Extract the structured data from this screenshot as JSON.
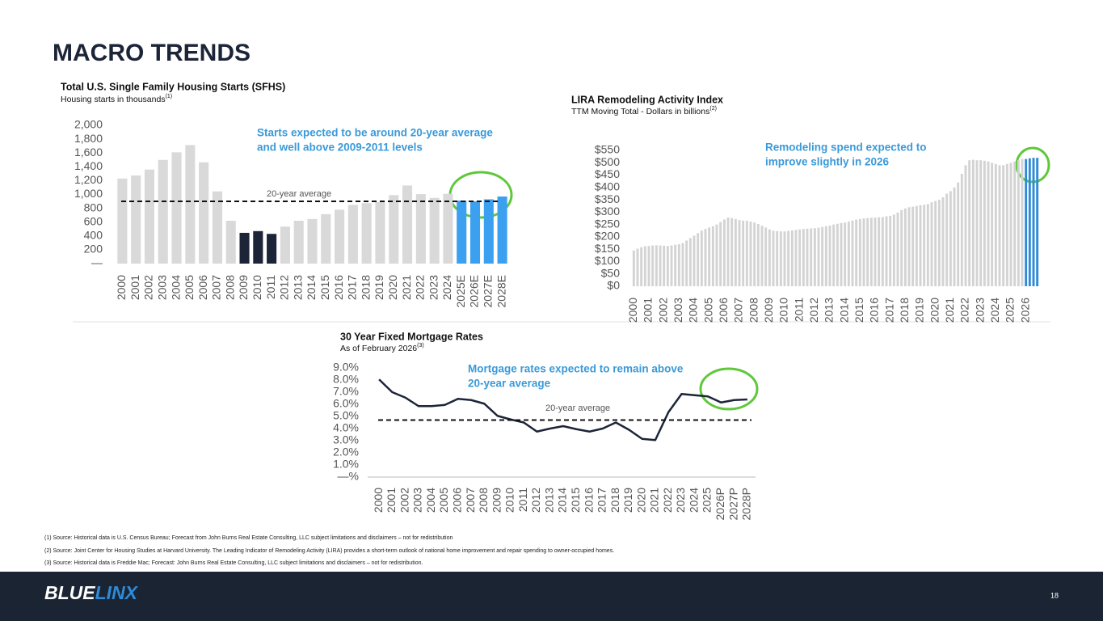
{
  "title": "MACRO TRENDS",
  "chart_data": [
    {
      "type": "bar",
      "title": "Total U.S. Single Family Housing Starts (SFHS)",
      "subtitle": "Housing starts in thousands",
      "subtitle_note": "(1)",
      "annotation": [
        "Starts expected to be around 20-year average",
        "and well above 2009-2011 levels"
      ],
      "categories": [
        "2000",
        "2001",
        "2002",
        "2003",
        "2004",
        "2005",
        "2006",
        "2007",
        "2008",
        "2009",
        "2010",
        "2011",
        "2012",
        "2013",
        "2014",
        "2015",
        "2016",
        "2017",
        "2018",
        "2019",
        "2020",
        "2021",
        "2022",
        "2023",
        "2024",
        "2025E",
        "2026E",
        "2027E",
        "2028E"
      ],
      "values": [
        1230,
        1275,
        1360,
        1500,
        1610,
        1715,
        1465,
        1045,
        620,
        445,
        470,
        430,
        535,
        620,
        645,
        715,
        780,
        850,
        875,
        890,
        990,
        1130,
        1005,
        950,
        1010,
        910,
        900,
        930,
        970
      ],
      "colors": [
        "#d9d9d9",
        "#d9d9d9",
        "#d9d9d9",
        "#d9d9d9",
        "#d9d9d9",
        "#d9d9d9",
        "#d9d9d9",
        "#d9d9d9",
        "#d9d9d9",
        "#1c2438",
        "#1c2438",
        "#1c2438",
        "#d9d9d9",
        "#d9d9d9",
        "#d9d9d9",
        "#d9d9d9",
        "#d9d9d9",
        "#d9d9d9",
        "#d9d9d9",
        "#d9d9d9",
        "#d9d9d9",
        "#d9d9d9",
        "#d9d9d9",
        "#d9d9d9",
        "#d9d9d9",
        "#3ba0f0",
        "#3ba0f0",
        "#3ba0f0",
        "#3ba0f0"
      ],
      "average": {
        "value": 900,
        "label": "20-year average"
      },
      "ylim": [
        0,
        2000
      ],
      "yticks": [
        {
          "value": 0,
          "label": "—"
        },
        200,
        400,
        600,
        800,
        {
          "value": 1000,
          "label": "1,000"
        },
        {
          "value": 1200,
          "label": "1,200"
        },
        {
          "value": 1400,
          "label": "1,400"
        },
        {
          "value": 1600,
          "label": "1,600"
        },
        {
          "value": 1800,
          "label": "1,800"
        },
        {
          "value": 2000,
          "label": "2,000"
        }
      ]
    },
    {
      "type": "bar",
      "title": "LIRA Remodeling Activity Index",
      "subtitle": "TTM Moving Total - Dollars in billions",
      "subtitle_note": "(2)",
      "annotation": [
        "Remodeling spend expected to",
        "improve slightly in 2026"
      ],
      "categories": [
        "2000",
        null,
        null,
        null,
        "2001",
        null,
        null,
        null,
        "2002",
        null,
        null,
        null,
        "2003",
        null,
        null,
        null,
        "2004",
        null,
        null,
        null,
        "2005",
        null,
        null,
        null,
        "2006",
        null,
        null,
        null,
        "2007",
        null,
        null,
        null,
        "2008",
        null,
        null,
        null,
        "2009",
        null,
        null,
        null,
        "2010",
        null,
        null,
        null,
        "2011",
        null,
        null,
        null,
        "2012",
        null,
        null,
        null,
        "2013",
        null,
        null,
        null,
        "2014",
        null,
        null,
        null,
        "2015",
        null,
        null,
        null,
        "2016",
        null,
        null,
        null,
        "2017",
        null,
        null,
        null,
        "2018",
        null,
        null,
        null,
        "2019",
        null,
        null,
        null,
        "2020",
        null,
        null,
        null,
        "2021",
        null,
        null,
        null,
        "2022",
        null,
        null,
        null,
        "2023",
        null,
        null,
        null,
        "2024",
        null,
        null,
        null,
        "2025",
        null,
        null,
        null,
        "2026",
        null,
        null,
        null
      ],
      "values": [
        145,
        152,
        158,
        162,
        163,
        165,
        166,
        165,
        164,
        163,
        165,
        168,
        170,
        175,
        185,
        195,
        205,
        215,
        225,
        232,
        238,
        243,
        250,
        260,
        270,
        278,
        276,
        272,
        268,
        266,
        265,
        262,
        258,
        252,
        245,
        238,
        230,
        225,
        223,
        222,
        222,
        224,
        226,
        228,
        230,
        232,
        233,
        234,
        235,
        237,
        240,
        243,
        246,
        250,
        253,
        256,
        258,
        262,
        266,
        270,
        272,
        275,
        276,
        277,
        278,
        279,
        280,
        283,
        285,
        290,
        298,
        308,
        315,
        320,
        322,
        325,
        328,
        330,
        333,
        340,
        345,
        350,
        360,
        375,
        385,
        400,
        420,
        455,
        490,
        510,
        512,
        510,
        510,
        508,
        505,
        500,
        495,
        490,
        490,
        495,
        500,
        505,
        510,
        515,
        515,
        518,
        520,
        520
      ],
      "colors": [
        "#d3d3d3",
        "#d3d3d3",
        "#d3d3d3",
        "#d3d3d3",
        "#d3d3d3",
        "#d3d3d3",
        "#d3d3d3",
        "#d3d3d3",
        "#d3d3d3",
        "#d3d3d3",
        "#d3d3d3",
        "#d3d3d3",
        "#d3d3d3",
        "#d3d3d3",
        "#d3d3d3",
        "#d3d3d3",
        "#d3d3d3",
        "#d3d3d3",
        "#d3d3d3",
        "#d3d3d3",
        "#d3d3d3",
        "#d3d3d3",
        "#d3d3d3",
        "#d3d3d3",
        "#d3d3d3",
        "#d3d3d3",
        "#d3d3d3",
        "#d3d3d3",
        "#d3d3d3",
        "#d3d3d3",
        "#d3d3d3",
        "#d3d3d3",
        "#d3d3d3",
        "#d3d3d3",
        "#d3d3d3",
        "#d3d3d3",
        "#d3d3d3",
        "#d3d3d3",
        "#d3d3d3",
        "#d3d3d3",
        "#d3d3d3",
        "#d3d3d3",
        "#d3d3d3",
        "#d3d3d3",
        "#d3d3d3",
        "#d3d3d3",
        "#d3d3d3",
        "#d3d3d3",
        "#d3d3d3",
        "#d3d3d3",
        "#d3d3d3",
        "#d3d3d3",
        "#d3d3d3",
        "#d3d3d3",
        "#d3d3d3",
        "#d3d3d3",
        "#d3d3d3",
        "#d3d3d3",
        "#d3d3d3",
        "#d3d3d3",
        "#d3d3d3",
        "#d3d3d3",
        "#d3d3d3",
        "#d3d3d3",
        "#d3d3d3",
        "#d3d3d3",
        "#d3d3d3",
        "#d3d3d3",
        "#d3d3d3",
        "#d3d3d3",
        "#d3d3d3",
        "#d3d3d3",
        "#d3d3d3",
        "#d3d3d3",
        "#d3d3d3",
        "#d3d3d3",
        "#d3d3d3",
        "#d3d3d3",
        "#d3d3d3",
        "#d3d3d3",
        "#d3d3d3",
        "#d3d3d3",
        "#d3d3d3",
        "#d3d3d3",
        "#d3d3d3",
        "#d3d3d3",
        "#d3d3d3",
        "#d3d3d3",
        "#d3d3d3",
        "#d3d3d3",
        "#d3d3d3",
        "#d3d3d3",
        "#d3d3d3",
        "#d3d3d3",
        "#d3d3d3",
        "#d3d3d3",
        "#d3d3d3",
        "#d3d3d3",
        "#d3d3d3",
        "#d3d3d3",
        "#d3d3d3",
        "#d3d3d3",
        "#d3d3d3",
        "#d3d3d3",
        "#2e8ad8",
        "#2e8ad8",
        "#2e8ad8",
        "#2e8ad8"
      ],
      "ylim": [
        0,
        550
      ],
      "yticks": [
        {
          "value": 0,
          "label": "$0"
        },
        {
          "value": 50,
          "label": "$50"
        },
        {
          "value": 100,
          "label": "$100"
        },
        {
          "value": 150,
          "label": "$150"
        },
        {
          "value": 200,
          "label": "$200"
        },
        {
          "value": 250,
          "label": "$250"
        },
        {
          "value": 300,
          "label": "$300"
        },
        {
          "value": 350,
          "label": "$350"
        },
        {
          "value": 400,
          "label": "$400"
        },
        {
          "value": 450,
          "label": "$450"
        },
        {
          "value": 500,
          "label": "$500"
        },
        {
          "value": 550,
          "label": "$550"
        }
      ]
    },
    {
      "type": "line",
      "title": "30 Year Fixed Mortgage Rates",
      "subtitle": "As of February 2026",
      "subtitle_note": "(3)",
      "annotation": [
        "Mortgage rates expected to remain above",
        "20-year average"
      ],
      "categories": [
        "2000",
        "2001",
        "2002",
        "2003",
        "2004",
        "2005",
        "2006",
        "2007",
        "2008",
        "2009",
        "2010",
        "2011",
        "2012",
        "2013",
        "2014",
        "2015",
        "2016",
        "2017",
        "2018",
        "2019",
        "2020",
        "2021",
        "2022",
        "2023",
        "2024",
        "2025",
        "2026P",
        "2027P",
        "2028P"
      ],
      "values": [
        8.05,
        7.0,
        6.55,
        5.85,
        5.85,
        5.95,
        6.45,
        6.35,
        6.05,
        5.05,
        4.75,
        4.5,
        3.75,
        4.0,
        4.2,
        3.95,
        3.75,
        4.0,
        4.5,
        3.9,
        3.15,
        3.05,
        5.35,
        6.85,
        6.75,
        6.65,
        6.15,
        6.35,
        6.4
      ],
      "color": "#1c2438",
      "average": {
        "value": 4.7,
        "label": "20-year average"
      },
      "ylim": [
        0,
        9
      ],
      "yticks": [
        {
          "value": 0,
          "label": "—%"
        },
        {
          "value": 1,
          "label": "1.0%"
        },
        {
          "value": 2,
          "label": "2.0%"
        },
        {
          "value": 3,
          "label": "3.0%"
        },
        {
          "value": 4,
          "label": "4.0%"
        },
        {
          "value": 5,
          "label": "5.0%"
        },
        {
          "value": 6,
          "label": "6.0%"
        },
        {
          "value": 7,
          "label": "7.0%"
        },
        {
          "value": 8,
          "label": "8.0%"
        },
        {
          "value": 9,
          "label": "9.0%"
        }
      ]
    }
  ],
  "footnotes": [
    "(1) Source: Historical data is U.S. Census Bureau; Forecast from John Burns Real Estate Consulting, LLC subject limitations and disclaimers – not for redistribution",
    "(2) Source: Joint Center for Housing Studies at Harvard University. The Leading Indicator of Remodeling Activity (LIRA) provides a short-term outlook of national home improvement and repair spending to owner-occupied homes.",
    "(3) Source: Historical data is Freddie Mac; Forecast: John Burns Real Estate Consulting, LLC subject limitations and disclaimers – not for redistribution."
  ],
  "footer": {
    "logo_a": "BLUE",
    "logo_b": "LINX",
    "page": "18"
  }
}
